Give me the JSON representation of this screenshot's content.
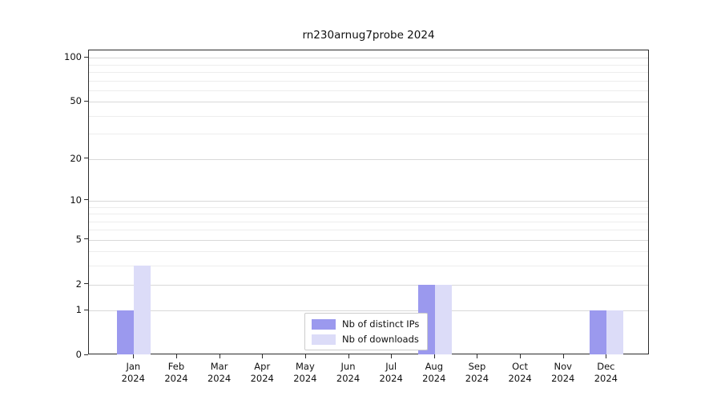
{
  "title": "rn230arnug7probe 2024",
  "chart_data": {
    "type": "bar",
    "title": "rn230arnug7probe 2024",
    "categories": [
      "Jan",
      "Feb",
      "Mar",
      "Apr",
      "May",
      "Jun",
      "Jul",
      "Aug",
      "Sep",
      "Oct",
      "Nov",
      "Dec"
    ],
    "year_label": "2024",
    "series": [
      {
        "name": "Nb of distinct IPs",
        "color": "#9b99ee",
        "values": [
          1,
          0,
          0,
          0,
          0,
          0,
          0,
          2,
          0,
          0,
          0,
          1
        ]
      },
      {
        "name": "Nb of downloads",
        "color": "#dcdcf8",
        "values": [
          3,
          0,
          0,
          0,
          0,
          0,
          0,
          2,
          0,
          0,
          0,
          1
        ]
      }
    ],
    "yticks": [
      0,
      1,
      2,
      5,
      10,
      20,
      50,
      100
    ],
    "minor_yticks": [
      3,
      4,
      6,
      7,
      8,
      9,
      30,
      40,
      60,
      70,
      80,
      90
    ],
    "ylim": [
      0,
      100
    ],
    "scale": "log1p",
    "grid": true,
    "legend_position": "bottom-center"
  }
}
